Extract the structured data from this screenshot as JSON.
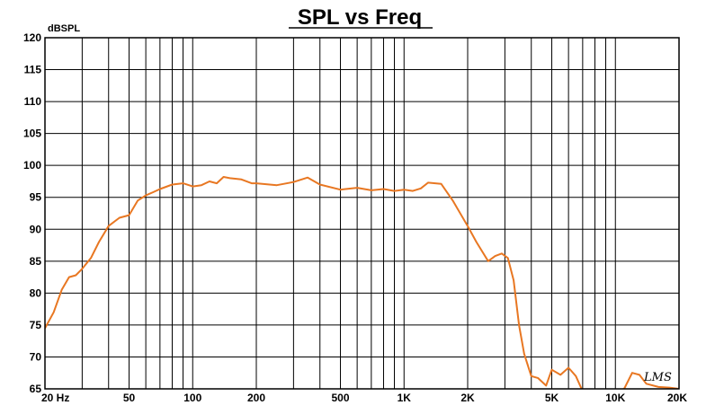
{
  "chart_data": {
    "type": "line",
    "title": "SPL vs Freq",
    "ylabel": "dBSPL",
    "xlabel": "",
    "x_scale": "log",
    "xlim": [
      20,
      20000
    ],
    "ylim": [
      65,
      120
    ],
    "grid": true,
    "y_ticks": [
      65,
      70,
      75,
      80,
      85,
      90,
      95,
      100,
      105,
      110,
      115,
      120
    ],
    "y_tick_labels": [
      "65",
      "70",
      "75",
      "80",
      "85",
      "90",
      "95",
      "100",
      "105",
      "110",
      "115",
      "120"
    ],
    "x_ticks": [
      20,
      50,
      100,
      200,
      500,
      1000,
      2000,
      5000,
      10000,
      20000
    ],
    "x_tick_labels": [
      "20 Hz",
      "50",
      "100",
      "200",
      "500",
      "1K",
      "2K",
      "5K",
      "10K",
      "20K"
    ],
    "series": [
      {
        "color": "#e87722",
        "x": [
          20,
          22,
          24,
          26,
          28,
          30,
          33,
          36,
          40,
          45,
          50,
          55,
          60,
          65,
          70,
          80,
          90,
          100,
          110,
          120,
          130,
          140,
          150,
          170,
          190,
          200,
          250,
          300,
          350,
          400,
          500,
          600,
          700,
          800,
          900,
          1000,
          1100,
          1200,
          1300,
          1500,
          1700,
          2000,
          2200,
          2500,
          2700,
          2900,
          3100,
          3300,
          3500,
          3700,
          4000,
          4300,
          4700,
          5000,
          5500,
          6000,
          6500,
          7000,
          8000,
          9000,
          10000,
          11000,
          12000,
          13000,
          14000,
          16000,
          18000,
          20000
        ],
        "values": [
          74.5,
          77,
          80.5,
          82.5,
          82.8,
          83.8,
          85.5,
          88,
          90.5,
          91.8,
          92.2,
          94.5,
          95.3,
          95.8,
          96.3,
          97,
          97.2,
          96.7,
          96.9,
          97.5,
          97.2,
          98.2,
          98,
          97.8,
          97.2,
          97.2,
          96.9,
          97.4,
          98.1,
          97,
          96.2,
          96.5,
          96.1,
          96.3,
          96,
          96.2,
          96,
          96.4,
          97.3,
          97.1,
          94.5,
          90.5,
          88,
          85,
          85.8,
          86.2,
          85.5,
          82,
          75,
          70.5,
          67,
          66.7,
          65.5,
          68,
          67.2,
          68.3,
          67,
          64.6,
          64.6,
          64.6,
          64.6,
          65,
          67.5,
          67.2,
          65.8,
          65.3,
          65.2,
          65
        ]
      }
    ],
    "watermark": "LMS"
  }
}
